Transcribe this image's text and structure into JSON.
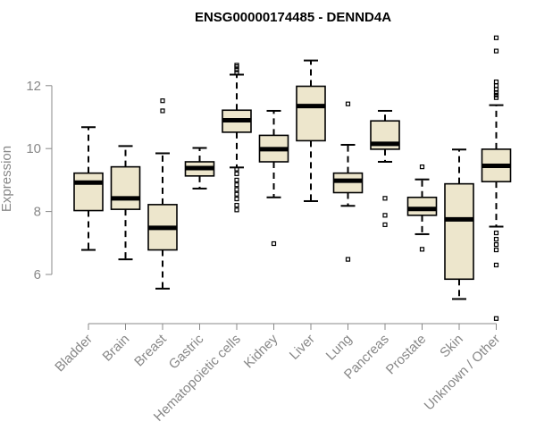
{
  "chart_data": {
    "type": "boxplot",
    "title": "ENSG00000174485 - DENND4A",
    "xlabel": "",
    "ylabel": "Expression",
    "ylim": [
      4.4,
      13.8
    ],
    "yticks": [
      6,
      8,
      10,
      12
    ],
    "box_fill": "#ede6cc",
    "categories": [
      "Bladder",
      "Brain",
      "Breast",
      "Gastric",
      "Hematopoietic cells",
      "Kidney",
      "Liver",
      "Lung",
      "Pancreas",
      "Prostate",
      "Skin",
      "Unknown / Other"
    ],
    "boxes": [
      {
        "whisker_low": 6.78,
        "q1": 8.03,
        "median": 8.92,
        "q3": 9.22,
        "whisker_high": 10.68,
        "outliers": []
      },
      {
        "whisker_low": 6.48,
        "q1": 8.07,
        "median": 8.42,
        "q3": 9.42,
        "whisker_high": 10.08,
        "outliers": []
      },
      {
        "whisker_low": 5.55,
        "q1": 6.78,
        "median": 7.48,
        "q3": 8.22,
        "whisker_high": 9.85,
        "outliers": [
          11.2,
          11.52
        ]
      },
      {
        "whisker_low": 8.73,
        "q1": 9.13,
        "median": 9.38,
        "q3": 9.58,
        "whisker_high": 10.02,
        "outliers": []
      },
      {
        "whisker_low": 9.4,
        "q1": 10.52,
        "median": 10.9,
        "q3": 11.22,
        "whisker_high": 12.35,
        "outliers": [
          12.42,
          12.5,
          12.6,
          12.65,
          9.35,
          9.2,
          9.0,
          8.85,
          8.7,
          8.55,
          8.4,
          8.2,
          8.05
        ]
      },
      {
        "whisker_low": 8.45,
        "q1": 9.58,
        "median": 9.98,
        "q3": 10.42,
        "whisker_high": 11.2,
        "outliers": [
          6.98
        ]
      },
      {
        "whisker_low": 8.33,
        "q1": 10.25,
        "median": 11.35,
        "q3": 11.98,
        "whisker_high": 12.8,
        "outliers": []
      },
      {
        "whisker_low": 8.18,
        "q1": 8.6,
        "median": 8.98,
        "q3": 9.22,
        "whisker_high": 10.12,
        "outliers": [
          11.42,
          6.48
        ]
      },
      {
        "whisker_low": 9.58,
        "q1": 9.98,
        "median": 10.15,
        "q3": 10.88,
        "whisker_high": 11.2,
        "outliers": [
          8.42,
          7.88,
          7.58
        ]
      },
      {
        "whisker_low": 7.28,
        "q1": 7.88,
        "median": 8.08,
        "q3": 8.45,
        "whisker_high": 9.02,
        "outliers": [
          9.42,
          6.8
        ]
      },
      {
        "whisker_low": 5.22,
        "q1": 5.85,
        "median": 7.75,
        "q3": 8.88,
        "whisker_high": 9.97,
        "outliers": []
      },
      {
        "whisker_low": 7.52,
        "q1": 8.95,
        "median": 9.45,
        "q3": 9.98,
        "whisker_high": 11.38,
        "outliers": [
          13.52,
          13.1,
          12.12,
          12.0,
          11.88,
          11.78,
          11.7,
          11.62,
          7.32,
          7.12,
          6.95,
          6.78,
          6.3,
          4.6
        ]
      }
    ]
  }
}
